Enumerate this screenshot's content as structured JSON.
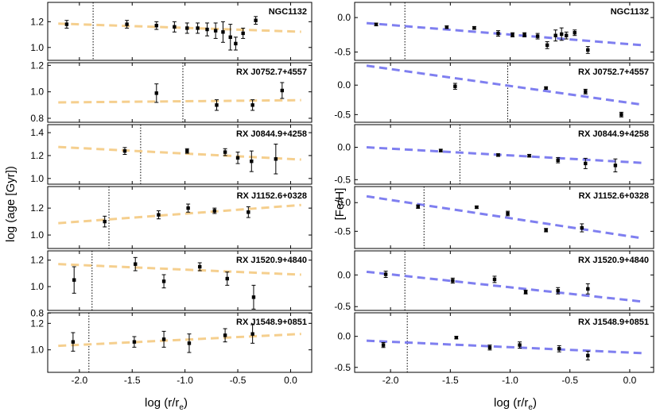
{
  "figure": {
    "left_ylabel": "log (age [Gyr])",
    "right_ylabel": "[Fe/H]",
    "xlabel_main": "log (r/r",
    "xlabel_sub": "e",
    "xlabel_close": ")"
  },
  "colors": {
    "age_fit": "#f5cf8e",
    "feh_fit": "#7f7ff0",
    "points": "#000000"
  },
  "chart_data": [
    {
      "type": "scatter",
      "panel": "NGC1132",
      "quantity": "age",
      "xlim": [
        -2.3,
        0.2
      ],
      "ylim": [
        0.9,
        1.35
      ],
      "yticks": [
        1.0,
        1.2
      ],
      "x": [
        -2.12,
        -1.55,
        -1.27,
        -1.1,
        -0.98,
        -0.88,
        -0.79,
        -0.71,
        -0.64,
        -0.57,
        -0.52,
        -0.45,
        -0.33
      ],
      "y": [
        1.18,
        1.18,
        1.17,
        1.16,
        1.15,
        1.15,
        1.14,
        1.13,
        1.12,
        1.08,
        1.03,
        1.11,
        1.21
      ],
      "err": [
        0.03,
        0.03,
        0.03,
        0.04,
        0.04,
        0.04,
        0.05,
        0.06,
        0.08,
        0.1,
        0.05,
        0.04,
        0.03
      ],
      "fit": [
        [
          -2.2,
          1.185
        ],
        [
          0.1,
          1.122
        ]
      ],
      "re_line": -1.87
    },
    {
      "type": "scatter",
      "panel": "RX J0752.7+4557",
      "quantity": "age",
      "xlim": [
        -2.3,
        0.2
      ],
      "ylim": [
        0.77,
        1.22
      ],
      "yticks": [
        0.8,
        1.0,
        1.2
      ],
      "x": [
        -1.27,
        -0.7,
        -0.36,
        -0.08
      ],
      "y": [
        0.99,
        0.9,
        0.9,
        1.01
      ],
      "err": [
        0.07,
        0.04,
        0.04,
        0.06
      ],
      "fit": [
        [
          -2.2,
          0.92
        ],
        [
          0.1,
          0.937
        ]
      ],
      "re_line": -1.02
    },
    {
      "type": "scatter",
      "panel": "RX J0844.9+4258",
      "quantity": "age",
      "xlim": [
        -2.3,
        0.2
      ],
      "ylim": [
        0.95,
        1.47
      ],
      "yticks": [
        1.0,
        1.2,
        1.4
      ],
      "x": [
        -1.57,
        -0.98,
        -0.62,
        -0.5,
        -0.37,
        -0.14
      ],
      "y": [
        1.24,
        1.24,
        1.23,
        1.18,
        1.15,
        1.17
      ],
      "err": [
        0.03,
        0.02,
        0.03,
        0.05,
        0.09,
        0.13
      ],
      "fit": [
        [
          -2.2,
          1.275
        ],
        [
          0.1,
          1.165
        ]
      ],
      "re_line": -1.42
    },
    {
      "type": "scatter",
      "panel": "RX J1152.6+0328",
      "quantity": "age",
      "xlim": [
        -2.3,
        0.2
      ],
      "ylim": [
        0.9,
        1.36
      ],
      "yticks": [
        1.0,
        1.2
      ],
      "x": [
        -1.76,
        -1.25,
        -0.97,
        -0.72,
        -0.4
      ],
      "y": [
        1.1,
        1.15,
        1.2,
        1.18,
        1.17
      ],
      "err": [
        0.04,
        0.03,
        0.03,
        0.02,
        0.04
      ],
      "fit": [
        [
          -2.2,
          1.088
        ],
        [
          0.1,
          1.223
        ]
      ],
      "re_line": -1.72
    },
    {
      "type": "scatter",
      "panel": "RX J1520.9+4840",
      "quantity": "age",
      "xlim": [
        -2.3,
        0.2
      ],
      "ylim": [
        0.82,
        1.27
      ],
      "yticks": [
        0.8,
        1.0,
        1.2
      ],
      "x": [
        -2.05,
        -1.47,
        -1.2,
        -0.86,
        -0.6,
        -0.35
      ],
      "y": [
        1.05,
        1.17,
        1.04,
        1.15,
        1.06,
        0.92
      ],
      "err": [
        0.1,
        0.05,
        0.05,
        0.03,
        0.05,
        0.09
      ],
      "fit": [
        [
          -2.2,
          1.17
        ],
        [
          0.1,
          1.09
        ]
      ],
      "re_line": -1.88
    },
    {
      "type": "scatter",
      "panel": "RX J1548.9+0851",
      "quantity": "age",
      "xlim": [
        -2.3,
        0.2
      ],
      "ylim": [
        0.83,
        1.28
      ],
      "yticks": [
        1.0,
        1.2
      ],
      "x": [
        -2.06,
        -1.48,
        -1.2,
        -0.96,
        -0.62,
        -0.36
      ],
      "y": [
        1.06,
        1.06,
        1.08,
        1.05,
        1.11,
        1.12
      ],
      "err": [
        0.07,
        0.04,
        0.06,
        0.07,
        0.05,
        0.07
      ],
      "fit": [
        [
          -2.2,
          1.03
        ],
        [
          0.1,
          1.12
        ]
      ],
      "re_line": -1.91
    },
    {
      "type": "scatter",
      "panel": "NGC1132",
      "quantity": "feh",
      "xlim": [
        -2.3,
        0.2
      ],
      "ylim": [
        -0.62,
        0.22
      ],
      "yticks": [
        0.0,
        -0.5
      ],
      "x": [
        -2.12,
        -1.53,
        -1.3,
        -1.1,
        -0.98,
        -0.88,
        -0.77,
        -0.69,
        -0.62,
        -0.57,
        -0.53,
        -0.46,
        -0.35
      ],
      "y": [
        -0.1,
        -0.14,
        -0.15,
        -0.23,
        -0.25,
        -0.25,
        -0.27,
        -0.4,
        -0.26,
        -0.24,
        -0.26,
        -0.22,
        -0.47
      ],
      "err": [
        0.02,
        0.02,
        0.02,
        0.04,
        0.03,
        0.03,
        0.04,
        0.05,
        0.08,
        0.09,
        0.05,
        0.04,
        0.05
      ],
      "fit": [
        [
          -2.2,
          -0.08
        ],
        [
          0.1,
          -0.4
        ]
      ],
      "re_line": -1.88
    },
    {
      "type": "scatter",
      "panel": "RX J0752.7+4557",
      "quantity": "feh",
      "xlim": [
        -2.3,
        0.2
      ],
      "ylim": [
        -0.63,
        0.38
      ],
      "yticks": [
        0.0,
        -0.5
      ],
      "x": [
        -1.46,
        -0.7,
        -0.37,
        -0.07
      ],
      "y": [
        -0.02,
        -0.05,
        -0.11,
        -0.5
      ],
      "err": [
        0.05,
        0.02,
        0.04,
        0.04
      ],
      "fit": [
        [
          -2.2,
          0.33
        ],
        [
          0.1,
          -0.33
        ]
      ],
      "re_line": -1.02
    },
    {
      "type": "scatter",
      "panel": "RX J0844.9+4258",
      "quantity": "feh",
      "xlim": [
        -2.3,
        0.2
      ],
      "ylim": [
        -0.57,
        0.35
      ],
      "yticks": [
        0.0,
        -0.5
      ],
      "x": [
        -1.58,
        -1.1,
        -0.84,
        -0.6,
        -0.37,
        -0.12
      ],
      "y": [
        -0.05,
        -0.12,
        -0.13,
        -0.2,
        -0.25,
        -0.28
      ],
      "err": [
        0.02,
        0.02,
        0.02,
        0.04,
        0.08,
        0.1
      ],
      "fit": [
        [
          -2.2,
          0.0
        ],
        [
          0.1,
          -0.24
        ]
      ],
      "re_line": -1.42
    },
    {
      "type": "scatter",
      "panel": "RX J1152.6+0328",
      "quantity": "feh",
      "xlim": [
        -2.3,
        0.2
      ],
      "ylim": [
        -0.8,
        0.28
      ],
      "yticks": [
        0.0,
        -0.5
      ],
      "x": [
        -1.77,
        -1.28,
        -1.02,
        -0.7,
        -0.4
      ],
      "y": [
        -0.07,
        -0.08,
        -0.19,
        -0.48,
        -0.44
      ],
      "err": [
        0.03,
        0.02,
        0.04,
        0.03,
        0.07
      ],
      "fit": [
        [
          -2.2,
          0.11
        ],
        [
          0.1,
          -0.62
        ]
      ],
      "re_line": -1.72
    },
    {
      "type": "scatter",
      "panel": "RX J1520.9+4840",
      "quantity": "feh",
      "xlim": [
        -2.3,
        0.2
      ],
      "ylim": [
        -0.56,
        0.38
      ],
      "yticks": [
        0.0,
        -0.5
      ],
      "x": [
        -2.04,
        -1.48,
        -1.13,
        -0.87,
        -0.6,
        -0.35
      ],
      "y": [
        0.01,
        -0.09,
        -0.07,
        -0.27,
        -0.25,
        -0.22
      ],
      "err": [
        0.05,
        0.04,
        0.05,
        0.03,
        0.05,
        0.08
      ],
      "fit": [
        [
          -2.2,
          0.05
        ],
        [
          0.1,
          -0.42
        ]
      ],
      "re_line": -1.88
    },
    {
      "type": "scatter",
      "panel": "RX J1548.9+0851",
      "quantity": "feh",
      "xlim": [
        -2.3,
        0.2
      ],
      "ylim": [
        -0.58,
        0.38
      ],
      "yticks": [
        0.0,
        -0.5
      ],
      "x": [
        -2.06,
        -1.45,
        -1.17,
        -0.92,
        -0.59,
        -0.35
      ],
      "y": [
        -0.14,
        -0.02,
        -0.18,
        -0.14,
        -0.2,
        -0.31
      ],
      "err": [
        0.04,
        0.02,
        0.04,
        0.05,
        0.05,
        0.07
      ],
      "fit": [
        [
          -2.2,
          -0.07
        ],
        [
          0.1,
          -0.27
        ]
      ],
      "re_line": -1.86
    }
  ],
  "x_ticks": [
    -2.0,
    -1.5,
    -1.0,
    -0.5,
    0.0
  ],
  "x_tick_labels": [
    "-2.0",
    "-1.5",
    "-1.0",
    "-0.5",
    "0.0"
  ]
}
